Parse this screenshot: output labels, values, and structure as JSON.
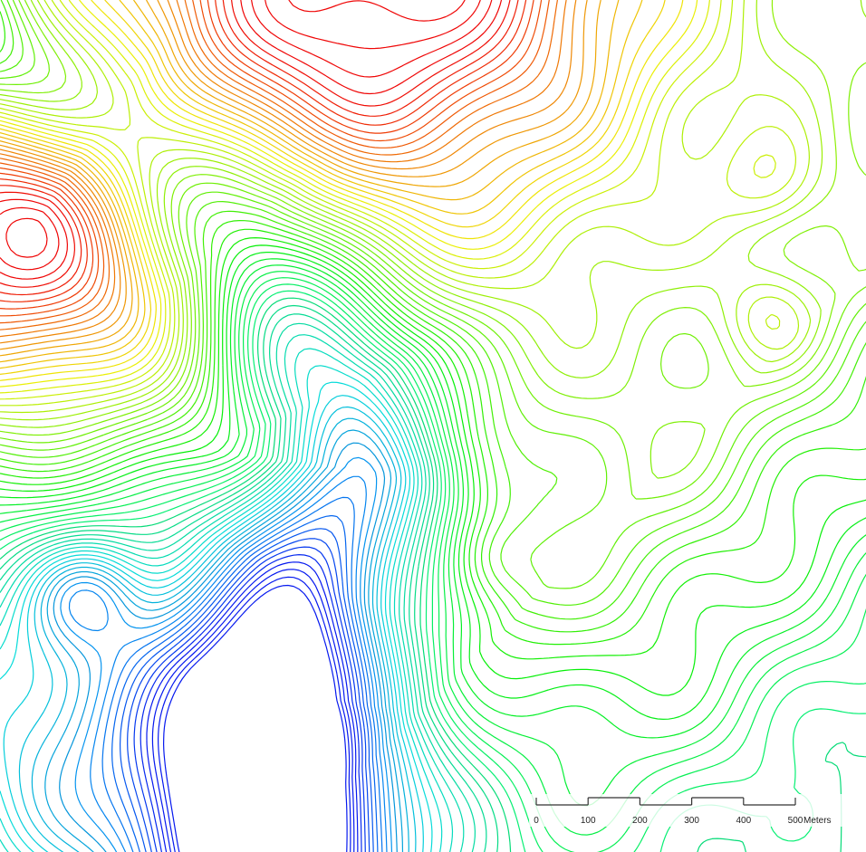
{
  "scale_bar": {
    "labels": [
      "0",
      "100",
      "200",
      "300",
      "400",
      "500"
    ],
    "unit": "Meters"
  }
}
